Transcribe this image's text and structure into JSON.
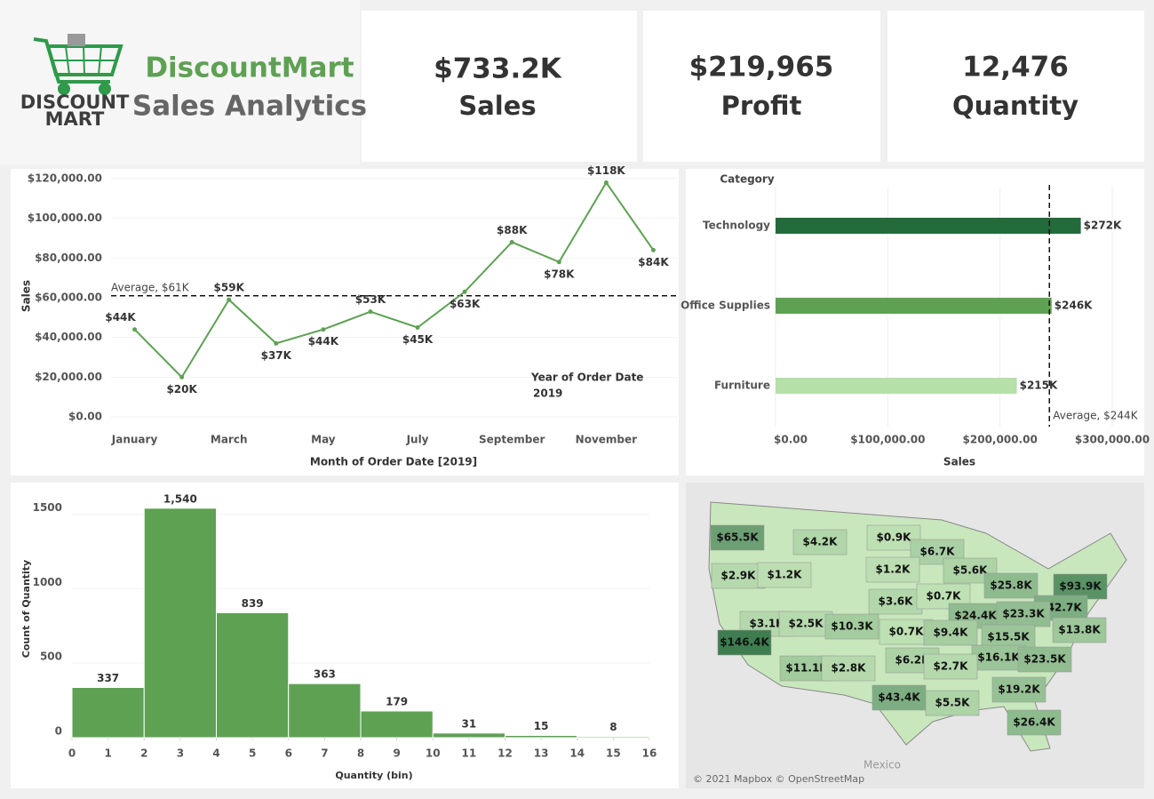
{
  "header": {
    "logo_top": "DISCOUNT",
    "logo_bottom": "MART",
    "title": "DiscountMart",
    "subtitle": "Sales Analytics"
  },
  "kpis": [
    {
      "value": "$733.2K",
      "label": "Sales"
    },
    {
      "value": "$219,965",
      "label": "Profit"
    },
    {
      "value": "12,476",
      "label": "Quantity"
    }
  ],
  "chart_data": [
    {
      "type": "line",
      "color": "#5ea153",
      "categories": [
        "January",
        null,
        "March",
        null,
        "May",
        null,
        "July",
        null,
        "September",
        null,
        "November",
        null
      ],
      "values": [
        44000,
        20000,
        59000,
        37000,
        44000,
        53000,
        45000,
        63000,
        88000,
        78000,
        118000,
        84000
      ],
      "value_labels": [
        "$44K",
        "$20K",
        "$59K",
        "$37K",
        "$44K",
        "$53K",
        "$45K",
        "$63K",
        "$88K",
        "$78K",
        "$118K",
        "$84K"
      ],
      "ylim": [
        0,
        120000
      ],
      "yticks": [
        {
          "value": 0,
          "label": "$0.00"
        },
        {
          "value": 20000,
          "label": "$20,000.00"
        },
        {
          "value": 40000,
          "label": "$40,000.00"
        },
        {
          "value": 60000,
          "label": "$60,000.00"
        },
        {
          "value": 80000,
          "label": "$80,000.00"
        },
        {
          "value": 100000,
          "label": "$100,000.00"
        },
        {
          "value": 120000,
          "label": "$120,000.00"
        }
      ],
      "y_label": "Sales",
      "x_label": "Month of Order Date [2019]",
      "average": {
        "value": 61000,
        "label": "Average, $61K"
      },
      "legend_title": "Year of Order Date",
      "legend_value": "2019"
    },
    {
      "type": "hbar",
      "axis_title": "Category",
      "categories": [
        "Technology",
        "Office Supplies",
        "Furniture"
      ],
      "values": [
        272000,
        246000,
        215000
      ],
      "value_labels": [
        "$272K",
        "$246K",
        "$215K"
      ],
      "colors": [
        "#236b3a",
        "#5ea153",
        "#b5e0a8"
      ],
      "xlim": [
        0,
        300000
      ],
      "xticks": [
        {
          "value": 0,
          "label": "$0.00"
        },
        {
          "value": 100000,
          "label": "$100,000.00"
        },
        {
          "value": 200000,
          "label": "$200,000.00"
        },
        {
          "value": 300000,
          "label": "$300,000.00"
        }
      ],
      "x_label": "Sales",
      "average": {
        "value": 244000,
        "label": "Average, $244K"
      }
    },
    {
      "type": "histogram",
      "color": "#5ea153",
      "bins": [
        0,
        2,
        4,
        6,
        8,
        10,
        12,
        14,
        16
      ],
      "values": [
        337,
        1540,
        839,
        363,
        179,
        31,
        15,
        8
      ],
      "value_labels": [
        "337",
        "1,540",
        "839",
        "363",
        "179",
        "31",
        "15",
        "8"
      ],
      "xlim": [
        0,
        16
      ],
      "xticks": [
        0,
        1,
        2,
        3,
        4,
        5,
        6,
        7,
        8,
        9,
        10,
        11,
        12,
        13,
        14,
        15,
        16
      ],
      "ylim": [
        0,
        1700
      ],
      "yticks": [
        0,
        500,
        1000,
        1500
      ],
      "y_label": "Count of Quantity",
      "x_label": "Quantity (bin)"
    },
    {
      "type": "map",
      "values": [
        65500,
        4200,
        900,
        6700,
        2900,
        1200,
        1200,
        5600,
        25800,
        93900,
        3600,
        700,
        42700,
        3100,
        2500,
        10300,
        24400,
        23300,
        146400,
        700,
        9400,
        15500,
        13800,
        6200,
        16100,
        23500,
        11100,
        2800,
        2700,
        19200,
        43400,
        5500,
        26400
      ],
      "value_labels": [
        "$65.5K",
        "$4.2K",
        "$0.9K",
        "$6.7K",
        "$2.9K",
        "$1.2K",
        "$1.2K",
        "$5.6K",
        "$25.8K",
        "$93.9K",
        "$3.6K",
        "$0.7K",
        "$42.7K",
        "$3.1K",
        "$2.5K",
        "$10.3K",
        "$24.4K",
        "$23.3K",
        "$146.4K",
        "$0.7K",
        "$9.4K",
        "$15.5K",
        "$13.8K",
        "$6.2K",
        "$16.1K",
        "$23.5K",
        "$11.1K",
        "$2.8K",
        "$2.7K",
        "$19.2K",
        "$43.4K",
        "$5.5K",
        "$26.4K"
      ],
      "place_label": "Mexico",
      "attribution": "© 2021 Mapbox © OpenStreetMap"
    }
  ]
}
